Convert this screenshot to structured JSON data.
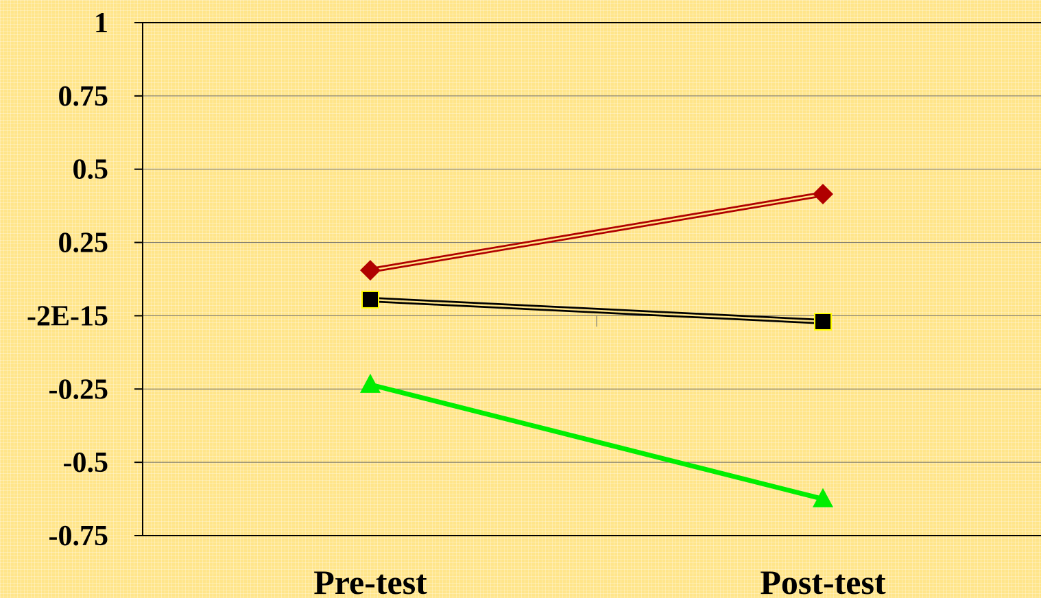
{
  "chart_data": {
    "type": "line",
    "title": "",
    "xlabel": "",
    "ylabel": "",
    "categories": [
      "Pre-test",
      "Post-test"
    ],
    "ylim": [
      -0.75,
      1
    ],
    "y_ticks": [
      1,
      0.75,
      0.5,
      0.25,
      0,
      -0.25,
      -0.5,
      -0.75
    ],
    "y_tick_labels": [
      "1",
      "0.75",
      "0.5",
      "0.25",
      "-2E-15",
      "-0.25",
      "-0.5",
      "-0.75"
    ],
    "grid": true,
    "legend": "none",
    "series": [
      {
        "values": [
          0.155,
          0.415
        ],
        "color": "#B00000",
        "line_style": "double",
        "marker": "diamond"
      },
      {
        "values": [
          0.055,
          -0.02
        ],
        "color": "#000000",
        "line_style": "double",
        "marker": "square"
      },
      {
        "values": [
          -0.235,
          -0.625
        ],
        "color": "#00EE00",
        "line_style": "solid",
        "marker": "triangle"
      }
    ]
  }
}
